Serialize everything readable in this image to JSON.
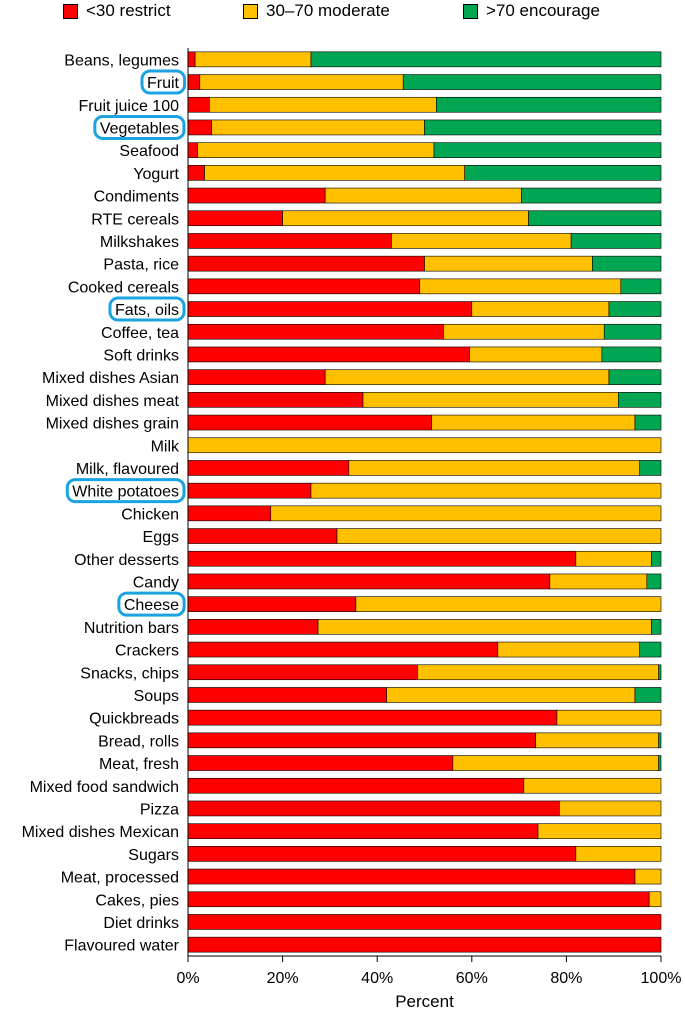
{
  "chart_data": {
    "type": "bar",
    "orientation": "horizontal",
    "stacked": true,
    "xlabel": "Percent",
    "xlim": [
      0,
      100
    ],
    "x_ticks": [
      "0%",
      "20%",
      "40%",
      "60%",
      "80%",
      "100%"
    ],
    "grid": false,
    "legend_position": "top",
    "highlighted_categories": [
      "Fruit",
      "Vegetables",
      "Fats, oils",
      "White potatoes",
      "Cheese"
    ],
    "highlight_color": "#1aa3e0",
    "categories": [
      "Beans, legumes",
      "Fruit",
      "Fruit juice 100",
      "Vegetables",
      "Seafood",
      "Yogurt",
      "Condiments",
      "RTE cereals",
      "Milkshakes",
      "Pasta, rice",
      "Cooked cereals",
      "Fats, oils",
      "Coffee, tea",
      "Soft drinks",
      "Mixed dishes Asian",
      "Mixed dishes meat",
      "Mixed dishes grain",
      "Milk",
      "Milk, flavoured",
      "White potatoes",
      "Chicken",
      "Eggs",
      "Other desserts",
      "Candy",
      "Cheese",
      "Nutrition bars",
      "Crackers",
      "Snacks, chips",
      "Soups",
      "Quickbreads",
      "Bread, rolls",
      "Meat, fresh",
      "Mixed food sandwich",
      "Pizza",
      "Mixed dishes Mexican",
      "Sugars",
      "Meat, processed",
      "Cakes, pies",
      "Diet drinks",
      "Flavoured water"
    ],
    "series": [
      {
        "name": "<30 restrict",
        "color": "#ff0000",
        "values": [
          1.5,
          2.5,
          4.5,
          5,
          2,
          3.5,
          29,
          20,
          43,
          50,
          49,
          60,
          54,
          59.5,
          29,
          37,
          51.5,
          0,
          34,
          26,
          17.5,
          31.5,
          82,
          76.5,
          35.5,
          27.5,
          65.5,
          48.5,
          42,
          78,
          73.5,
          56,
          71,
          78.5,
          74,
          82,
          94.5,
          97.5,
          100,
          100
        ]
      },
      {
        "name": "30–70 moderate",
        "color": "#ffc000",
        "values": [
          24.5,
          43,
          48,
          45,
          50,
          55,
          41.5,
          52,
          38,
          35.5,
          42.5,
          29,
          34,
          28,
          60,
          54,
          43,
          100,
          61.5,
          74,
          82.5,
          68.5,
          16,
          20.5,
          64.5,
          70.5,
          30,
          51,
          52.5,
          22,
          26,
          43.5,
          29,
          21.5,
          26,
          18,
          5.5,
          2.5,
          0,
          0
        ]
      },
      {
        "name": ">70 encourage",
        "color": "#00a651",
        "values": [
          74,
          54.5,
          47.5,
          50,
          48,
          41.5,
          29.5,
          28,
          19,
          14.5,
          8.5,
          11,
          12,
          12.5,
          11,
          9,
          5.5,
          0,
          4.5,
          0,
          0,
          0,
          2,
          3,
          0,
          2,
          4.5,
          0.5,
          5.5,
          0,
          0.5,
          0.5,
          0,
          0,
          0,
          0,
          0,
          0,
          0,
          0
        ]
      }
    ]
  }
}
